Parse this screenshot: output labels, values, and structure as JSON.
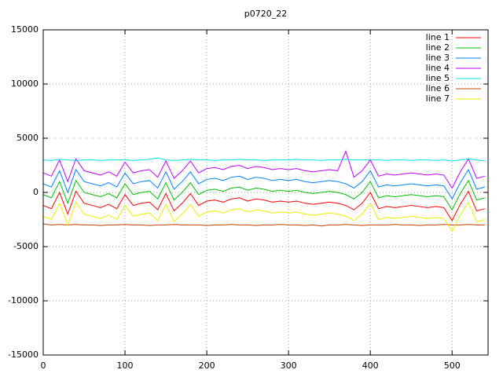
{
  "chart_data": {
    "type": "line",
    "title": "p0720_22",
    "x": [
      0,
      10,
      20,
      30,
      40,
      50,
      60,
      70,
      80,
      90,
      100,
      110,
      120,
      130,
      140,
      150,
      160,
      170,
      180,
      190,
      200,
      210,
      220,
      230,
      240,
      250,
      260,
      270,
      280,
      290,
      300,
      310,
      320,
      330,
      340,
      350,
      360,
      370,
      380,
      390,
      400,
      410,
      420,
      430,
      440,
      450,
      460,
      470,
      480,
      490,
      500,
      510,
      520,
      530,
      540
    ],
    "xlim": [
      0,
      544
    ],
    "ylim": [
      -15000,
      15000
    ],
    "xticks": [
      0,
      100,
      200,
      300,
      400,
      500
    ],
    "yticks": [
      -15000,
      -10000,
      -5000,
      0,
      5000,
      10000,
      15000
    ],
    "grid": true,
    "legend": "top-right",
    "series": [
      {
        "name": "line 1",
        "color": "#ff0000",
        "values": [
          -1200,
          -1500,
          0,
          -2000,
          100,
          -1000,
          -1200,
          -1400,
          -1100,
          -1500,
          -200,
          -1200,
          -1000,
          -900,
          -1600,
          -100,
          -1700,
          -1000,
          -100,
          -1200,
          -800,
          -700,
          -900,
          -600,
          -500,
          -800,
          -600,
          -700,
          -900,
          -800,
          -900,
          -800,
          -1000,
          -1100,
          -1000,
          -900,
          -1000,
          -1200,
          -1600,
          -1000,
          0,
          -1500,
          -1300,
          -1400,
          -1300,
          -1200,
          -1300,
          -1400,
          -1300,
          -1400,
          -2600,
          -1100,
          100,
          -1700,
          -1500
        ]
      },
      {
        "name": "line 2",
        "color": "#00c000",
        "values": [
          -200,
          -500,
          1000,
          -1000,
          1100,
          0,
          -200,
          -400,
          -100,
          -500,
          800,
          -200,
          0,
          100,
          -600,
          900,
          -700,
          0,
          900,
          -200,
          200,
          300,
          100,
          400,
          500,
          200,
          400,
          300,
          100,
          200,
          100,
          200,
          0,
          -100,
          0,
          100,
          0,
          -200,
          -600,
          0,
          1000,
          -500,
          -300,
          -400,
          -300,
          -200,
          -300,
          -400,
          -300,
          -400,
          -1600,
          -100,
          1100,
          -700,
          -500
        ]
      },
      {
        "name": "line 3",
        "color": "#0080ff",
        "values": [
          800,
          500,
          2000,
          0,
          2100,
          1000,
          800,
          600,
          900,
          500,
          1800,
          800,
          1000,
          1100,
          400,
          1900,
          300,
          1000,
          1900,
          800,
          1200,
          1300,
          1100,
          1400,
          1500,
          1200,
          1400,
          1300,
          1100,
          1200,
          1100,
          1200,
          1000,
          900,
          1000,
          1100,
          1000,
          800,
          400,
          1000,
          2000,
          500,
          700,
          600,
          700,
          800,
          700,
          600,
          700,
          600,
          -600,
          900,
          2100,
          300,
          500
        ]
      },
      {
        "name": "line 4",
        "color": "#c000ff",
        "values": [
          1800,
          1500,
          3000,
          1000,
          3100,
          2000,
          1800,
          1600,
          1900,
          1500,
          2800,
          1800,
          2000,
          2100,
          1400,
          2900,
          1300,
          2000,
          2900,
          1800,
          2200,
          2300,
          2100,
          2400,
          2500,
          2200,
          2400,
          2300,
          2100,
          2200,
          2100,
          2200,
          2000,
          1900,
          2000,
          2100,
          2000,
          3800,
          1400,
          2000,
          3000,
          1500,
          1700,
          1600,
          1700,
          1800,
          1700,
          1600,
          1700,
          1600,
          400,
          1900,
          3100,
          1300,
          1500
        ]
      },
      {
        "name": "line 5",
        "color": "#00e0e0",
        "values": [
          3000,
          2950,
          3050,
          3000,
          2950,
          3000,
          3000,
          2950,
          3000,
          3000,
          3000,
          2950,
          3000,
          3050,
          3200,
          3000,
          2950,
          3000,
          3050,
          3000,
          3000,
          2950,
          3000,
          3000,
          3050,
          3000,
          3000,
          2950,
          3000,
          3000,
          3000,
          3050,
          3000,
          3000,
          2950,
          3000,
          3000,
          3050,
          3000,
          3000,
          3000,
          3000,
          2950,
          3000,
          3000,
          2950,
          3000,
          3000,
          2950,
          3000,
          2900,
          3000,
          3100,
          3000,
          2900
        ]
      },
      {
        "name": "line 6",
        "color": "#c04000",
        "values": [
          -2900,
          -3000,
          -2950,
          -3000,
          -2950,
          -3000,
          -3000,
          -3050,
          -3000,
          -3000,
          -2950,
          -3000,
          -3000,
          -3050,
          -3000,
          -3000,
          -2950,
          -3000,
          -3000,
          -3000,
          -3050,
          -3000,
          -3000,
          -2950,
          -3000,
          -3000,
          -3050,
          -3000,
          -3000,
          -2950,
          -3000,
          -3000,
          -3050,
          -3000,
          -3100,
          -3000,
          -3000,
          -2950,
          -3000,
          -3050,
          -3000,
          -3000,
          -3000,
          -2950,
          -3000,
          -3000,
          -3050,
          -3000,
          -3000,
          -2950,
          -3000,
          -3000,
          -2950,
          -3000,
          -3000
        ]
      },
      {
        "name": "line 7",
        "color": "#eeee00",
        "values": [
          -2200,
          -2500,
          -1000,
          -3000,
          -900,
          -2000,
          -2200,
          -2400,
          -2100,
          -2500,
          -1200,
          -2200,
          -2000,
          -1900,
          -2600,
          -1100,
          -2700,
          -2000,
          -1100,
          -2200,
          -1800,
          -1700,
          -1900,
          -1600,
          -1500,
          -1800,
          -1600,
          -1700,
          -1900,
          -1800,
          -1900,
          -1800,
          -2000,
          -2100,
          -2000,
          -1900,
          -2000,
          -2200,
          -2600,
          -2000,
          -1000,
          -2500,
          -2300,
          -2400,
          -2300,
          -2200,
          -2300,
          -2400,
          -2300,
          -2400,
          -3600,
          -2100,
          -900,
          -2700,
          -2500
        ]
      }
    ]
  }
}
